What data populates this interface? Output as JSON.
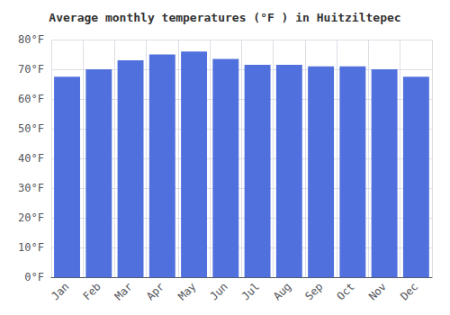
{
  "chart_data": {
    "type": "bar",
    "title": "Average monthly temperatures (°F ) in Huitziltepec",
    "categories": [
      "Jan",
      "Feb",
      "Mar",
      "Apr",
      "May",
      "Jun",
      "Jul",
      "Aug",
      "Sep",
      "Oct",
      "Nov",
      "Dec"
    ],
    "values": [
      67.5,
      70.0,
      73.0,
      75.0,
      76.0,
      73.5,
      71.5,
      71.5,
      71.0,
      71.0,
      70.0,
      67.5
    ],
    "ylim": [
      0,
      80
    ],
    "yticks": [
      {
        "value": 0,
        "label": "0°F"
      },
      {
        "value": 10,
        "label": "10°F"
      },
      {
        "value": 20,
        "label": "20°F"
      },
      {
        "value": 30,
        "label": "30°F"
      },
      {
        "value": 40,
        "label": "40°F"
      },
      {
        "value": 50,
        "label": "50°F"
      },
      {
        "value": 60,
        "label": "60°F"
      },
      {
        "value": 70,
        "label": "70°F"
      },
      {
        "value": 80,
        "label": "80°F"
      }
    ],
    "grid": true
  }
}
